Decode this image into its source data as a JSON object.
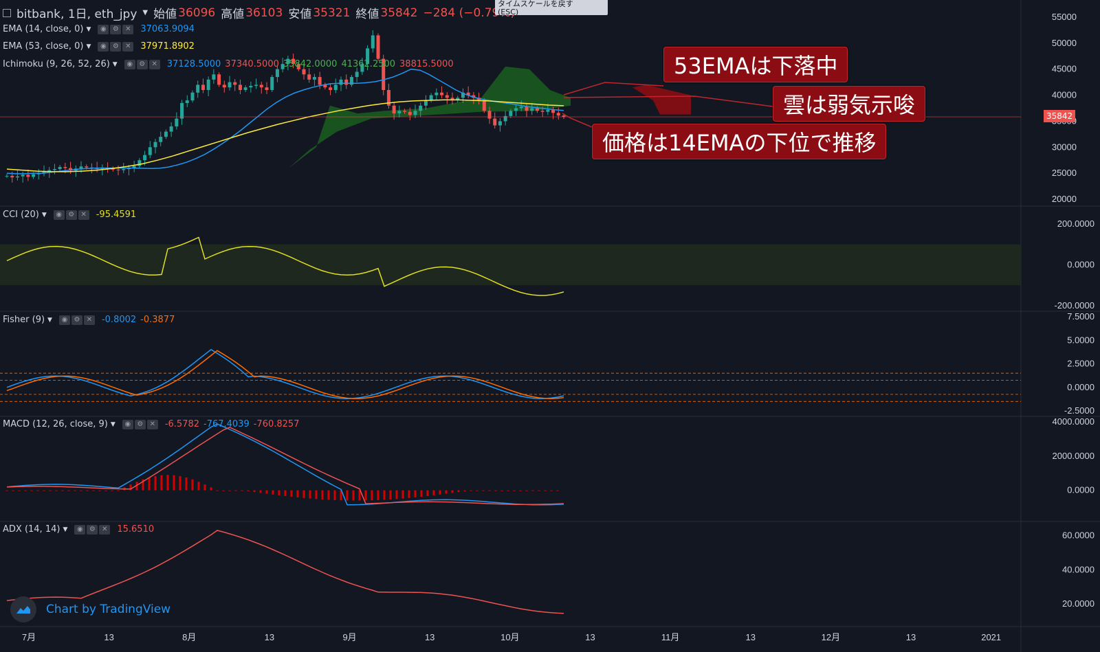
{
  "header": {
    "symbol": "bitbank, 1日, eth_jpy",
    "open_label": "始値",
    "open": "36096",
    "high_label": "高値",
    "high": "36103",
    "low_label": "安値",
    "low": "35321",
    "close_label": "終値",
    "close": "35842",
    "change": "−284 (−0.79%)"
  },
  "tooltip": {
    "line1": "タイムスケールを戻す",
    "line2": "(ESC)"
  },
  "indicators": {
    "ema14": {
      "name": "EMA (14, close, 0)",
      "value": "37063.9094",
      "color": "#2196f3"
    },
    "ema53": {
      "name": "EMA (53, close, 0)",
      "value": "37971.8902",
      "color": "#ffeb3b"
    },
    "ichimoku": {
      "name": "Ichimoku (9, 26, 52, 26)",
      "values": [
        "37128.5000",
        "37340.5000",
        "35842.0000",
        "41362.2500",
        "38815.5000"
      ],
      "colors": [
        "#2196f3",
        "#ef5350",
        "#4caf50",
        "#4caf50",
        "#ef5350"
      ]
    },
    "cci": {
      "name": "CCI (20)",
      "value": "-95.4591",
      "color": "#e0e020"
    },
    "fisher": {
      "name": "Fisher (9)",
      "value1": "-0.8002",
      "value2": "-0.3877",
      "color1": "#2196f3",
      "color2": "#ff6d00"
    },
    "macd": {
      "name": "MACD (12, 26, close, 9)",
      "hist": "-6.5782",
      "macd": "-767.4039",
      "signal": "-760.8257"
    },
    "adx": {
      "name": "ADX (14, 14)",
      "value": "15.6510",
      "color": "#ef5350"
    }
  },
  "annotations": {
    "a1": "53EMAは下落中",
    "a2": "雲は弱気示唆",
    "a3": "価格は14EMAの下位で推移"
  },
  "price_tag": "35842",
  "logo": "Chart by TradingView",
  "chart_data": [
    {
      "type": "candlestick",
      "title": "bitbank, 1日, eth_jpy",
      "x_ticks": [
        "7月",
        "13",
        "8月",
        "13",
        "9月",
        "13",
        "10月",
        "13",
        "11月",
        "13",
        "12月",
        "13",
        "2021"
      ],
      "y_ticks": [
        "55000",
        "50000",
        "45000",
        "40000",
        "35000",
        "30000",
        "25000",
        "20000"
      ],
      "ylim": [
        20000,
        55000
      ],
      "current_price": 35842,
      "close_approx": [
        24500,
        24200,
        24400,
        24700,
        24300,
        24800,
        25000,
        25300,
        25600,
        25800,
        26200,
        26000,
        25500,
        25900,
        26300,
        26100,
        26000,
        25800,
        26100,
        25900,
        25700,
        25600,
        25800,
        26000,
        26400,
        27500,
        28500,
        30000,
        31000,
        32000,
        33000,
        34000,
        35500,
        38500,
        39000,
        40500,
        42000,
        41000,
        43000,
        44000,
        42000,
        41500,
        42500,
        42000,
        41000,
        41500,
        41800,
        42000,
        41500,
        41000,
        43500,
        45000,
        46000,
        47000,
        46000,
        45000,
        44000,
        43000,
        43500,
        42000,
        41500,
        41000,
        42000,
        43000,
        42000,
        43500,
        44500,
        46000,
        49000,
        51500,
        47000,
        41000,
        38000,
        36500,
        37000,
        36800,
        36200,
        37000,
        38000,
        39000,
        40000,
        40500,
        40000,
        39500,
        39000,
        39500,
        40500,
        40000,
        39500,
        39000,
        37000,
        35500,
        34200,
        35000,
        36000,
        37000,
        37500,
        37800,
        37000,
        37500,
        37000,
        36800,
        37200,
        36600,
        36096,
        35842
      ],
      "ema14_approx": [
        25000,
        24900,
        24900,
        25000,
        25000,
        25200,
        25400,
        25600,
        25800,
        25900,
        26000,
        26000,
        26000,
        26000,
        26000,
        25950,
        25900,
        25950,
        26200,
        26600,
        27100,
        27800,
        28600,
        29600,
        30700,
        31900,
        33200,
        34600,
        36000,
        37400,
        38600,
        39600,
        40400,
        41000,
        41500,
        41900,
        42200,
        42300,
        42300,
        42300,
        42400,
        42600,
        43000,
        43500,
        44200,
        45000,
        44800,
        44000,
        43000,
        42000,
        41000,
        40200,
        39600,
        39200,
        38900,
        38600,
        38400,
        38100,
        37800,
        37600,
        37400,
        37200,
        37064
      ],
      "ema53_approx": [
        25800,
        25600,
        25400,
        25300,
        25300,
        25400,
        25600,
        25900,
        26300,
        26800,
        27500,
        28300,
        29200,
        30100,
        31000,
        31900,
        32800,
        33600,
        34400,
        35100,
        35800,
        36400,
        37000,
        37500,
        38000,
        38400,
        38700,
        38900,
        39000,
        39100,
        39100,
        39000,
        38900,
        38700,
        38500,
        38300,
        38100,
        37972
      ],
      "cci": {
        "ylim": [
          -200,
          260
        ],
        "y_ticks": [
          "200.0000",
          "0.0000",
          "-200.0000"
        ],
        "band": [
          100,
          -100
        ],
        "last": -95.4591
      },
      "fisher": {
        "ylim": [
          -2.5,
          7.5
        ],
        "y_ticks": [
          "7.5000",
          "5.0000",
          "2.5000",
          "0.0000",
          "-2.5000"
        ],
        "last": [
          -0.8002,
          -0.3877
        ]
      },
      "macd": {
        "ylim": [
          -1500,
          4000
        ],
        "y_ticks": [
          "4000.0000",
          "2000.0000",
          "0.0000"
        ],
        "last": [
          -767.4039,
          -760.8257,
          -6.5782
        ]
      },
      "adx": {
        "ylim": [
          10,
          65
        ],
        "y_ticks": [
          "60.0000",
          "40.0000",
          "20.0000"
        ],
        "last": 15.651
      }
    }
  ]
}
